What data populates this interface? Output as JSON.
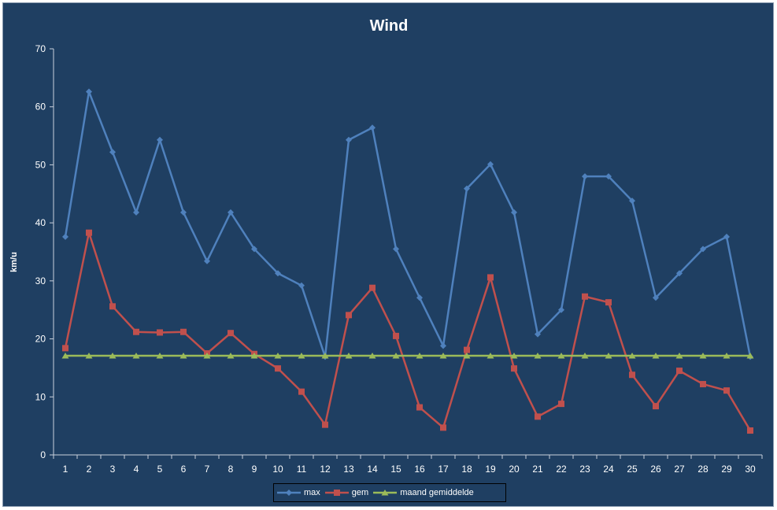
{
  "chart_data": {
    "type": "line",
    "title": "Wind",
    "xlabel": "",
    "ylabel": "km/u",
    "ylim": [
      0,
      70
    ],
    "yticks": [
      0,
      10,
      20,
      30,
      40,
      50,
      60,
      70
    ],
    "categories": [
      "1",
      "2",
      "3",
      "4",
      "5",
      "6",
      "7",
      "8",
      "9",
      "10",
      "11",
      "12",
      "13",
      "14",
      "15",
      "16",
      "17",
      "18",
      "19",
      "20",
      "21",
      "22",
      "23",
      "24",
      "25",
      "26",
      "27",
      "28",
      "29",
      "30"
    ],
    "grid": false,
    "legend_position": "bottom",
    "series": [
      {
        "name": "max",
        "color": "#4f81bd",
        "marker": "diamond",
        "values": [
          37.6,
          62.6,
          52.2,
          41.8,
          54.3,
          41.8,
          33.4,
          41.8,
          35.5,
          31.3,
          29.2,
          16.9,
          54.3,
          56.4,
          35.5,
          27.1,
          18.8,
          45.9,
          50.1,
          41.8,
          20.8,
          25.0,
          48.0,
          48.0,
          43.8,
          27.1,
          31.3,
          35.5,
          37.6,
          16.9
        ]
      },
      {
        "name": "gem",
        "color": "#c0504d",
        "marker": "square",
        "values": [
          18.4,
          38.3,
          25.6,
          21.2,
          21.1,
          21.2,
          17.5,
          21.0,
          17.4,
          14.9,
          10.9,
          5.2,
          24.1,
          28.8,
          20.5,
          8.2,
          4.7,
          18.1,
          30.6,
          14.9,
          6.6,
          8.8,
          27.3,
          26.3,
          13.8,
          8.4,
          14.5,
          12.2,
          11.1,
          4.2
        ]
      },
      {
        "name": "maand gemiddelde",
        "color": "#9bbb59",
        "marker": "triangle",
        "values": [
          17.1,
          17.1,
          17.1,
          17.1,
          17.1,
          17.1,
          17.1,
          17.1,
          17.1,
          17.1,
          17.1,
          17.1,
          17.1,
          17.1,
          17.1,
          17.1,
          17.1,
          17.1,
          17.1,
          17.1,
          17.1,
          17.1,
          17.1,
          17.1,
          17.1,
          17.1,
          17.1,
          17.1,
          17.1,
          17.1
        ]
      }
    ]
  }
}
